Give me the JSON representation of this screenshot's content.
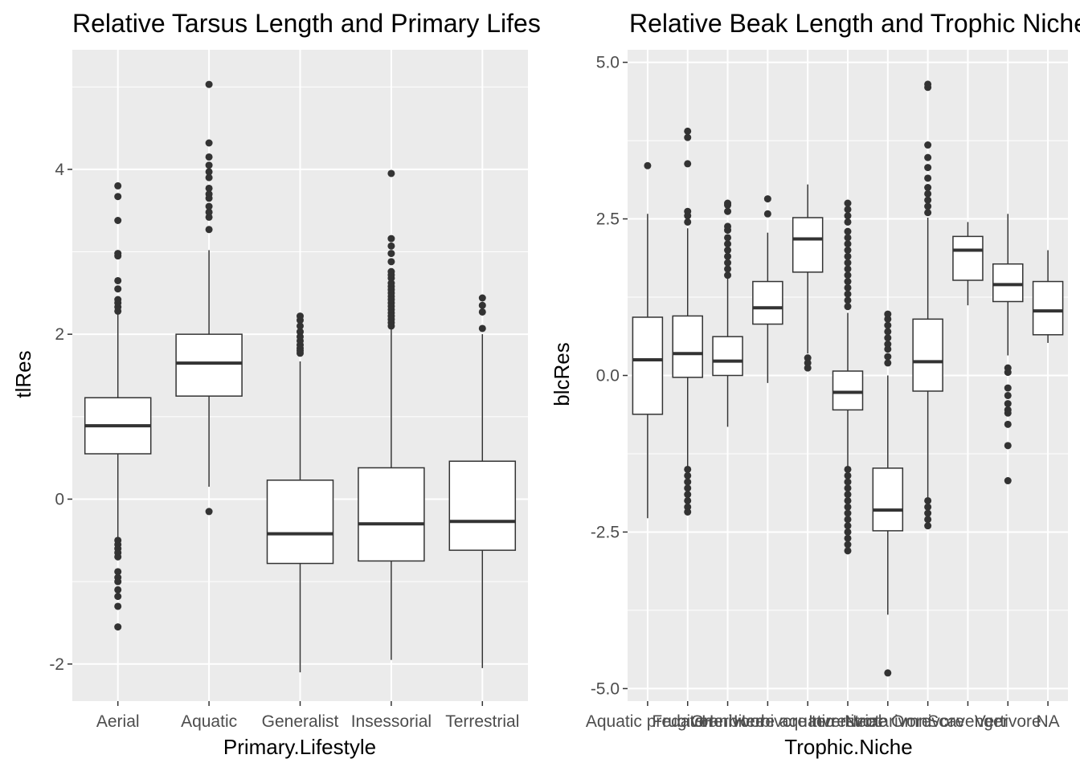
{
  "chart_data": [
    {
      "type": "boxplot",
      "title": "Relative Tarsus Length and Primary Lifestyle",
      "xlabel": "Primary.Lifestyle",
      "ylabel": "tlRes",
      "ylim": [
        -2.45,
        5.45
      ],
      "yticks": [
        {
          "value": -2,
          "label": "-2"
        },
        {
          "value": 0,
          "label": "0"
        },
        {
          "value": 2,
          "label": "2"
        },
        {
          "value": 4,
          "label": "4"
        }
      ],
      "grid": true,
      "categories": [
        "Aerial",
        "Aquatic",
        "Generalist",
        "Insessorial",
        "Terrestrial"
      ],
      "boxes": [
        {
          "q1": 0.55,
          "median": 0.89,
          "q3": 1.23,
          "whisker_low": -0.47,
          "whisker_high": 2.25,
          "outliers": [
            2.28,
            2.33,
            2.38,
            2.42,
            2.55,
            2.65,
            2.95,
            2.98,
            3.38,
            3.67,
            3.8,
            -0.5,
            -0.55,
            -0.6,
            -0.65,
            -0.7,
            -0.88,
            -0.95,
            -1.0,
            -1.1,
            -1.18,
            -1.3,
            -1.55
          ]
        },
        {
          "q1": 1.25,
          "median": 1.65,
          "q3": 2.0,
          "whisker_low": 0.15,
          "whisker_high": 3.02,
          "outliers": [
            3.27,
            3.42,
            3.48,
            3.55,
            3.65,
            3.7,
            3.77,
            3.9,
            3.97,
            4.05,
            4.15,
            4.32,
            5.03,
            -0.15
          ]
        },
        {
          "q1": -0.78,
          "median": -0.42,
          "q3": 0.23,
          "whisker_low": -2.1,
          "whisker_high": 1.67,
          "outliers": [
            1.77,
            1.8,
            1.83,
            1.87,
            1.92,
            1.97,
            2.03,
            2.1,
            2.17,
            2.22
          ]
        },
        {
          "q1": -0.75,
          "median": -0.3,
          "q3": 0.38,
          "whisker_low": -1.95,
          "whisker_high": 2.07,
          "outliers": [
            2.1,
            2.14,
            2.18,
            2.22,
            2.26,
            2.3,
            2.34,
            2.38,
            2.42,
            2.46,
            2.5,
            2.54,
            2.58,
            2.62,
            2.68,
            2.72,
            2.76,
            2.88,
            2.98,
            3.07,
            3.16,
            3.95
          ]
        },
        {
          "q1": -0.62,
          "median": -0.27,
          "q3": 0.46,
          "whisker_low": -2.05,
          "whisker_high": 2.0,
          "outliers": [
            2.07,
            2.27,
            2.35,
            2.44
          ]
        }
      ]
    },
    {
      "type": "boxplot",
      "title": "Relative Beak Length and Trophic Niche",
      "xlabel": "Trophic.Niche",
      "ylabel": "blcRes",
      "ylim": [
        -5.2,
        5.2
      ],
      "yticks": [
        {
          "value": -5,
          "label": "-5.0"
        },
        {
          "value": -2.5,
          "label": "-2.5"
        },
        {
          "value": 0,
          "label": "0.0"
        },
        {
          "value": 2.5,
          "label": "2.5"
        },
        {
          "value": 5,
          "label": "5.0"
        }
      ],
      "grid": true,
      "categories": [
        "Aquatic predator",
        "Frugivore",
        "Granivore",
        "Herbivore aquatic",
        "Herbivore terrestrial",
        "Invertivore",
        "Nectarivore",
        "Omnivore",
        "Scavenger",
        "Vertivore",
        "NA"
      ],
      "boxes": [
        {
          "q1": -0.62,
          "median": 0.25,
          "q3": 0.93,
          "whisker_low": -2.28,
          "whisker_high": 2.58,
          "outliers": [
            3.35
          ]
        },
        {
          "q1": -0.03,
          "median": 0.35,
          "q3": 0.95,
          "whisker_low": -1.45,
          "whisker_high": 2.35,
          "outliers": [
            2.45,
            2.55,
            2.62,
            3.38,
            3.8,
            3.9,
            -1.5,
            -1.6,
            -1.7,
            -1.8,
            -1.9,
            -2.0,
            -2.1,
            -2.18
          ]
        },
        {
          "q1": 0.0,
          "median": 0.23,
          "q3": 0.62,
          "whisker_low": -0.82,
          "whisker_high": 1.55,
          "outliers": [
            1.6,
            1.7,
            1.8,
            1.9,
            2.0,
            2.1,
            2.2,
            2.32,
            2.38,
            2.62,
            2.72,
            2.75
          ]
        },
        {
          "q1": 0.82,
          "median": 1.08,
          "q3": 1.5,
          "whisker_low": -0.12,
          "whisker_high": 2.28,
          "outliers": [
            2.58,
            2.82
          ]
        },
        {
          "q1": 1.65,
          "median": 2.18,
          "q3": 2.52,
          "whisker_low": 0.35,
          "whisker_high": 3.05,
          "outliers": [
            0.28,
            0.2,
            0.12
          ]
        },
        {
          "q1": -0.55,
          "median": -0.27,
          "q3": 0.07,
          "whisker_low": -1.45,
          "whisker_high": 1.0,
          "outliers": [
            1.1,
            1.2,
            1.3,
            1.4,
            1.5,
            1.6,
            1.7,
            1.8,
            1.9,
            2.0,
            2.1,
            2.2,
            2.3,
            2.45,
            2.55,
            2.65,
            2.75,
            -1.5,
            -1.6,
            -1.7,
            -1.8,
            -1.9,
            -2.0,
            -2.1,
            -2.2,
            -2.3,
            -2.4,
            -2.5,
            -2.6,
            -2.7,
            -2.8
          ]
        },
        {
          "q1": -2.48,
          "median": -2.15,
          "q3": -1.48,
          "whisker_low": -3.82,
          "whisker_high": 0.0,
          "outliers": [
            0.2,
            0.3,
            0.42,
            0.5,
            0.6,
            0.7,
            0.8,
            0.9,
            0.98,
            -4.75
          ]
        },
        {
          "q1": -0.25,
          "median": 0.22,
          "q3": 0.9,
          "whisker_low": -1.95,
          "whisker_high": 2.52,
          "outliers": [
            2.6,
            2.7,
            2.8,
            2.9,
            3.0,
            3.15,
            3.32,
            3.48,
            3.68,
            4.6,
            4.65,
            -2.0,
            -2.1,
            -2.2,
            -2.3,
            -2.4
          ]
        },
        {
          "q1": 1.52,
          "median": 2.0,
          "q3": 2.22,
          "whisker_low": 1.12,
          "whisker_high": 2.45,
          "outliers": []
        },
        {
          "q1": 1.18,
          "median": 1.45,
          "q3": 1.78,
          "whisker_low": 0.32,
          "whisker_high": 2.58,
          "outliers": [
            0.12,
            0.05,
            -0.2,
            -0.32,
            -0.45,
            -0.55,
            -0.6,
            -0.78,
            -1.12,
            -1.68
          ]
        },
        {
          "q1": 0.65,
          "median": 1.03,
          "q3": 1.5,
          "whisker_low": 0.52,
          "whisker_high": 2.0,
          "outliers": []
        }
      ]
    }
  ]
}
